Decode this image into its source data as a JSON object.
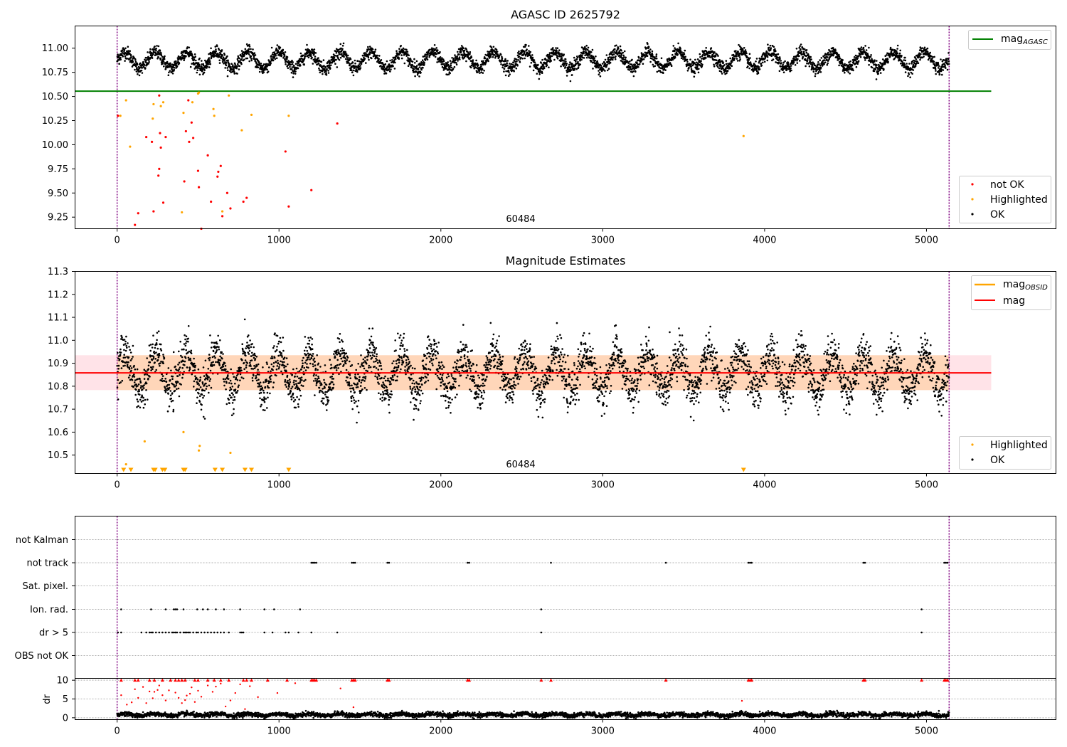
{
  "chart_data": [
    {
      "type": "scatter",
      "title": "AGASC ID 2625792",
      "annotation": "60484",
      "xlim": [
        -260,
        5800
      ],
      "ylim": [
        9.13,
        11.23
      ],
      "xticks": [
        "0",
        "1000",
        "2000",
        "3000",
        "4000",
        "5000"
      ],
      "yticks": [
        "9.25",
        "9.50",
        "9.75",
        "10.00",
        "10.25",
        "10.50",
        "10.75",
        "11.00"
      ],
      "vlines": [
        0,
        5140
      ],
      "hlines": [
        {
          "name": "mag",
          "subscript": "AGASC",
          "y": 10.555,
          "x": [
            -260,
            5400
          ],
          "color": "#008000"
        }
      ],
      "grid": false,
      "legend_top": "top-right",
      "legend_bottom": "bottom-right",
      "legend_entries": [
        "not OK",
        "Highlighted",
        "OK"
      ],
      "ok_series": {
        "name": "OK",
        "color": "#000000",
        "x_range": [
          0,
          5140
        ],
        "mean": 10.875,
        "amplitude": 0.085,
        "period": 190,
        "scatter": 0.035
      },
      "highlighted": {
        "name": "Highlighted",
        "color": "#ffa500",
        "x": [
          20,
          55,
          80,
          220,
          225,
          270,
          285,
          400,
          410,
          465,
          500,
          505,
          595,
          600,
          650,
          690,
          770,
          830,
          1060,
          3870
        ],
        "y": [
          10.3,
          10.46,
          9.98,
          10.27,
          10.42,
          10.4,
          10.44,
          9.3,
          10.33,
          10.44,
          10.53,
          10.54,
          10.37,
          10.3,
          9.31,
          10.51,
          10.15,
          10.31,
          10.3,
          10.09
        ]
      },
      "not_ok": {
        "name": "not OK",
        "color": "#ff0000",
        "x": [
          5,
          110,
          130,
          180,
          215,
          225,
          255,
          260,
          265,
          270,
          285,
          300,
          415,
          425,
          440,
          445,
          460,
          470,
          500,
          505,
          560,
          580,
          620,
          625,
          640,
          650,
          680,
          700,
          780,
          800,
          1040,
          1060,
          1200,
          1360,
          520,
          260
        ],
        "y": [
          10.3,
          9.17,
          9.29,
          10.08,
          10.03,
          9.31,
          9.68,
          9.75,
          10.12,
          9.97,
          9.4,
          10.08,
          9.62,
          10.14,
          10.46,
          10.03,
          10.23,
          10.07,
          9.73,
          9.56,
          9.89,
          9.41,
          9.67,
          9.72,
          9.78,
          9.26,
          9.5,
          9.34,
          9.41,
          9.45,
          9.93,
          9.36,
          9.53,
          10.22,
          9.13,
          10.51
        ]
      }
    },
    {
      "type": "scatter",
      "title": "Magnitude Estimates",
      "annotation": "60484",
      "xlim": [
        -260,
        5800
      ],
      "ylim": [
        10.42,
        11.3
      ],
      "xticks": [
        "0",
        "1000",
        "2000",
        "3000",
        "4000",
        "5000"
      ],
      "yticks": [
        "10.5",
        "10.6",
        "10.7",
        "10.8",
        "10.9",
        "11.0",
        "11.1",
        "11.2",
        "11.3"
      ],
      "vlines": [
        0,
        5140
      ],
      "band": {
        "y": [
          10.783,
          10.935
        ],
        "x": [
          -260,
          5400
        ],
        "color": "#ffc0cb"
      },
      "band_obsid": {
        "y": [
          10.783,
          10.935
        ],
        "x": [
          0,
          5140
        ],
        "color": "#ffa500"
      },
      "hlines": [
        {
          "name": "mag",
          "y": 10.858,
          "x": [
            -260,
            5400
          ],
          "color": "#ff0000"
        }
      ],
      "legend_top_entries": [
        {
          "name": "mag",
          "subscript": "OBSID",
          "color": "#ffa500"
        },
        {
          "name": "mag",
          "color": "#ff0000"
        }
      ],
      "legend_entries": [
        "Highlighted",
        "OK"
      ],
      "legend_top": "top-right",
      "legend_bottom": "bottom-right",
      "grid": false,
      "ok_series": {
        "name": "OK",
        "color": "#000000",
        "x_range": [
          0,
          5140
        ],
        "mean": 10.86,
        "amplitude": 0.085,
        "period": 190,
        "scatter": 0.045
      },
      "highlighted": {
        "name": "Highlighted",
        "color": "#ffa500",
        "x": [
          55,
          170,
          505,
          510,
          700,
          410
        ],
        "y": [
          10.46,
          10.56,
          10.52,
          10.54,
          10.51,
          10.6
        ]
      },
      "lower_limit_markers": {
        "color": "#ffa500",
        "x": [
          40,
          85,
          225,
          235,
          280,
          295,
          410,
          420,
          605,
          650,
          790,
          830,
          1060,
          3870
        ]
      }
    },
    {
      "type": "scatter",
      "title": "",
      "xlim": [
        -260,
        5800
      ],
      "xticks": [
        "0",
        "1000",
        "2000",
        "3000",
        "4000",
        "5000"
      ],
      "vlines": [
        0,
        5140
      ],
      "grid": true,
      "categories": [
        "not Kalman",
        "not track",
        "Sat. pixel.",
        "Ion. rad.",
        "dr > 5",
        "OBS not OK"
      ],
      "flags": {
        "not Kalman": [],
        "not track": [
          1200,
          1210,
          1220,
          1230,
          1450,
          1460,
          1470,
          1670,
          1680,
          2165,
          2175,
          2680,
          3390,
          3900,
          3910,
          3920,
          4610,
          4620,
          5110,
          5120,
          5130
        ],
        "Sat. pixel.": [],
        "Ion. rad.": [
          25,
          210,
          300,
          350,
          360,
          370,
          410,
          495,
          530,
          560,
          610,
          660,
          760,
          910,
          970,
          1130,
          2620,
          4970
        ],
        "dr > 5": [
          5,
          25,
          150,
          180,
          200,
          210,
          220,
          240,
          260,
          280,
          300,
          320,
          340,
          350,
          360,
          370,
          390,
          410,
          420,
          430,
          440,
          450,
          470,
          490,
          500,
          520,
          540,
          560,
          580,
          600,
          620,
          640,
          660,
          690,
          760,
          770,
          780,
          910,
          960,
          1040,
          1060,
          1120,
          1200,
          1360,
          2620,
          4970
        ],
        "OBS not OK": []
      }
    },
    {
      "type": "scatter",
      "title": "",
      "ylabel": "dr",
      "xlim": [
        -260,
        5800
      ],
      "ylim": [
        -0.5,
        10.5
      ],
      "xticks": [
        "0",
        "1000",
        "2000",
        "3000",
        "4000",
        "5000"
      ],
      "yticks": [
        "0",
        "5",
        "10"
      ],
      "vlines": [
        0,
        5140
      ],
      "grid": true,
      "baseline_series": {
        "color": "#000000",
        "x_range": [
          0,
          5140
        ],
        "mean": 0.8,
        "amplitude": 0.25,
        "period": 190,
        "scatter": 0.3
      },
      "red_series": {
        "color": "#ff0000",
        "x": [
          25,
          60,
          90,
          110,
          130,
          160,
          180,
          200,
          220,
          230,
          250,
          260,
          280,
          300,
          320,
          360,
          380,
          400,
          420,
          430,
          450,
          460,
          480,
          500,
          520,
          560,
          590,
          610,
          640,
          670,
          700,
          730,
          760,
          790,
          820,
          870,
          990,
          1100,
          1380,
          1460,
          3860
        ],
        "y": [
          6.0,
          3.5,
          4.1,
          7.6,
          5.3,
          8.2,
          3.9,
          7.0,
          5.2,
          6.9,
          7.4,
          8.6,
          6.0,
          4.6,
          7.3,
          6.7,
          5.3,
          3.9,
          4.7,
          5.9,
          6.4,
          8.1,
          4.2,
          7.2,
          5.6,
          8.6,
          6.9,
          8.3,
          9.1,
          3.0,
          4.6,
          6.6,
          8.9,
          2.3,
          8.4,
          5.5,
          6.6,
          9.2,
          7.8,
          2.8,
          4.5
        ]
      },
      "red_capped_x": [
        25,
        110,
        130,
        200,
        230,
        280,
        330,
        360,
        380,
        400,
        420,
        480,
        500,
        560,
        600,
        640,
        690,
        780,
        800,
        830,
        930,
        1050,
        1200,
        1210,
        1220,
        1230,
        1450,
        1460,
        1470,
        1670,
        1680,
        2165,
        2175,
        2620,
        2680,
        3390,
        3900,
        3910,
        3920,
        4610,
        4620,
        4970,
        5110,
        5120,
        5130
      ]
    }
  ]
}
